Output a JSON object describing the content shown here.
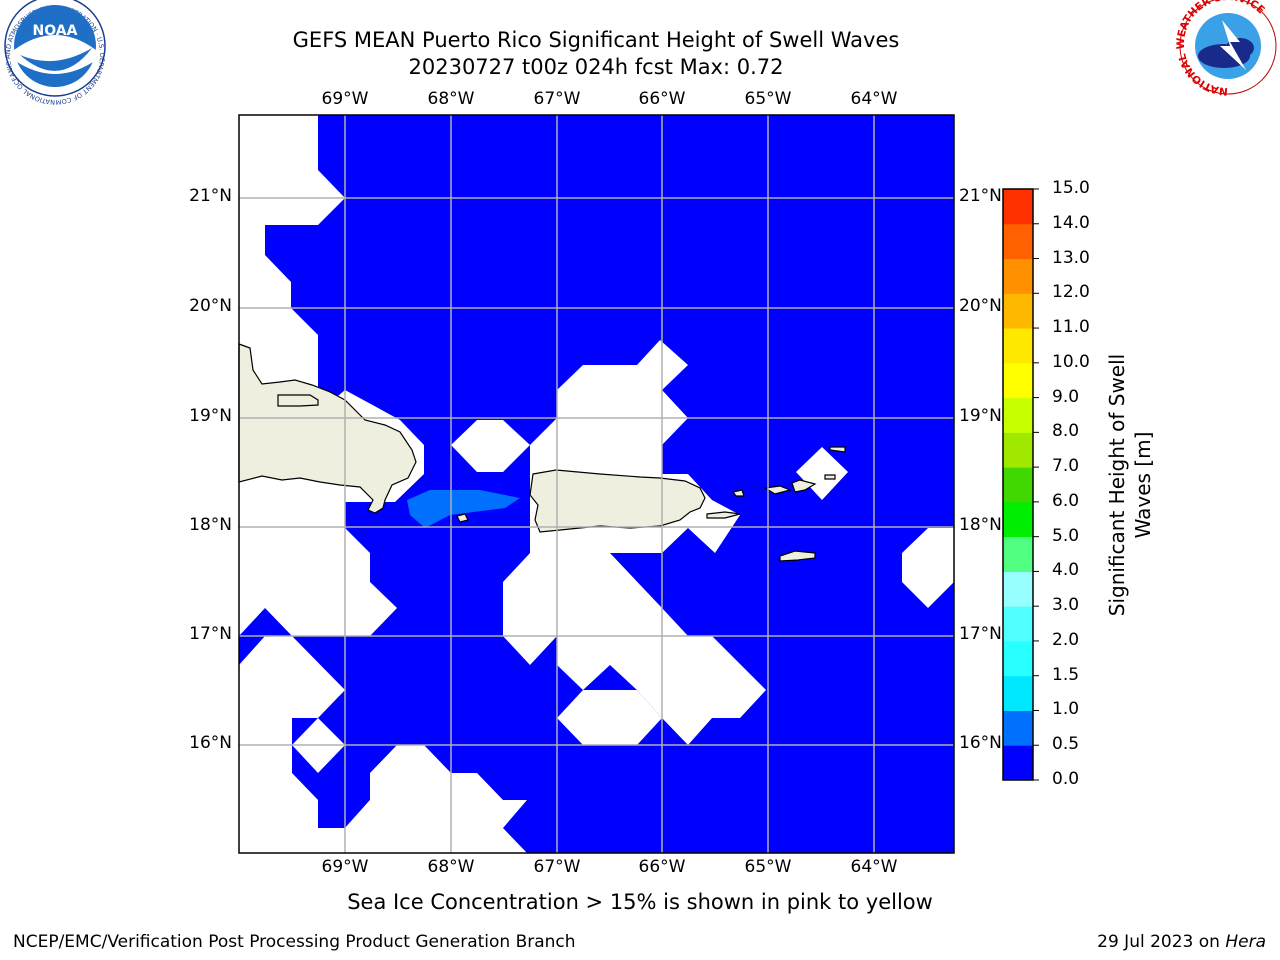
{
  "title_line1": "GEFS MEAN Puerto Rico Significant Height of Swell Waves",
  "title_line2": "20230727 t00z 024h fcst   Max: 0.72",
  "lon_labels": [
    "69°W",
    "68°W",
    "67°W",
    "66°W",
    "65°W",
    "64°W"
  ],
  "lat_labels": [
    "21°N",
    "20°N",
    "19°N",
    "18°N",
    "17°N",
    "16°N"
  ],
  "colorbar": {
    "label": "Significant Height of Swell Waves [m]",
    "ticks": [
      "0.0",
      "0.5",
      "1.0",
      "1.5",
      "2.0",
      "3.0",
      "4.0",
      "5.0",
      "6.0",
      "7.0",
      "8.0",
      "9.0",
      "10.0",
      "11.0",
      "12.0",
      "13.0",
      "14.0",
      "15.0"
    ],
    "colors": [
      "#0000ff",
      "#0070ff",
      "#00e8ff",
      "#28ffff",
      "#50ffff",
      "#98ffff",
      "#50ff80",
      "#00ee00",
      "#40d800",
      "#a0e800",
      "#c8ff00",
      "#ffff00",
      "#ffe800",
      "#ffb800",
      "#ff9000",
      "#ff6000",
      "#ff3000",
      "#ff0000"
    ]
  },
  "footnote": "Sea Ice Concentration > 15% is shown in pink to yellow",
  "credit_left": "NCEP/EMC/Verification Post Processing Product Generation Branch",
  "credit_right_prefix": "29 Jul 2023 on ",
  "credit_right_host": "Hera",
  "logos": {
    "noaa_text": "NOAA",
    "noaa_ring": "NATIONAL OCEANIC AND ATMOSPHERIC ADMINISTRATION · U.S. DEPARTMENT OF COMMERCE",
    "nws_ring": "NATIONAL WEATHER SERVICE"
  },
  "colors": {
    "ocean": "#0000ff",
    "land": "#efefdf",
    "swell_patch": "#0070ff",
    "grid": "#b0b0b0"
  },
  "map_data": {
    "lon_range": [
      -69.99,
      -63.25
    ],
    "lat_range": [
      15.02,
      21.78
    ],
    "max_value": 0.72
  }
}
